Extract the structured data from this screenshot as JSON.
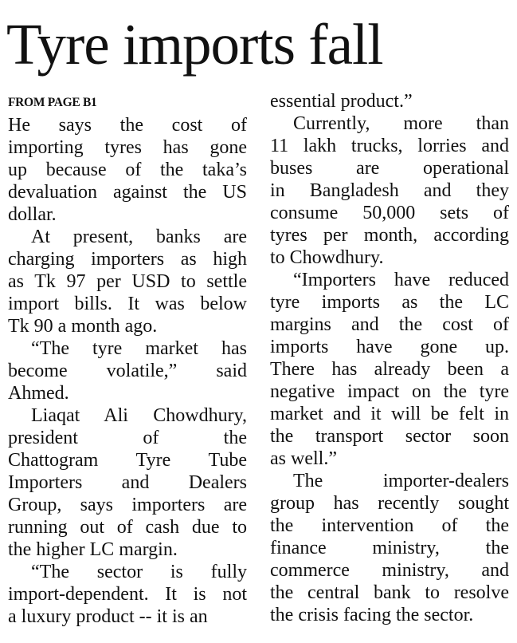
{
  "headline": "Tyre imports fall",
  "jump_label": "FROM PAGE B1",
  "left_column": [
    [
      "He says the cost of",
      "importing tyres has gone",
      "up because of the taka’s",
      "devaluation against the US",
      "dollar."
    ],
    [
      "At present, banks are",
      "charging importers as high",
      "as Tk 97 per USD to settle",
      "import bills. It was below",
      "Tk 90 a month ago."
    ],
    [
      "“The tyre market has",
      "become volatile,” said",
      "Ahmed."
    ],
    [
      "Liaqat Ali Chowdhury,",
      "president of the",
      "Chattogram Tyre Tube",
      "Importers and Dealers",
      "Group, says importers are",
      "running out of cash due to",
      "the higher LC margin."
    ],
    [
      "“The sector is fully",
      "import-dependent. It is not",
      "a luxury product -- it is an"
    ]
  ],
  "right_column": [
    [
      "essential product.”"
    ],
    [
      "Currently, more than",
      "11 lakh trucks, lorries and",
      "buses are operational",
      "in Bangladesh and they",
      "consume 50,000 sets of",
      "tyres per month, according",
      "to Chowdhury."
    ],
    [
      "“Importers have reduced",
      "tyre imports as the LC",
      "margins and the cost of",
      "imports have gone up.",
      "There has already been a",
      "negative impact on the tyre",
      "market and it will be felt in",
      "the transport sector soon",
      "as well.”"
    ],
    [
      "The importer-dealers",
      "group has recently sought",
      "the intervention of the",
      "finance ministry, the",
      "commerce ministry, and",
      "the central bank to resolve",
      "the crisis facing the sector."
    ]
  ]
}
